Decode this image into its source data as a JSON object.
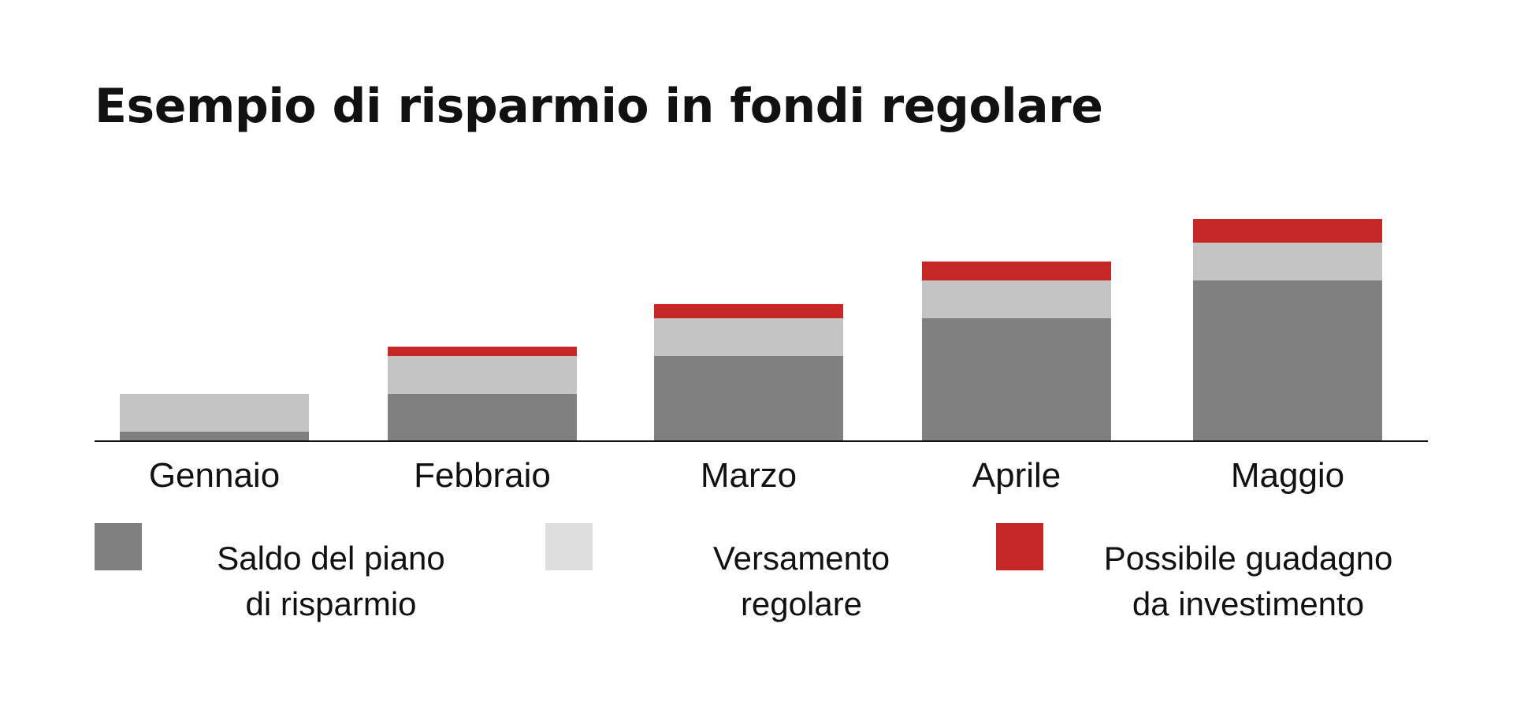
{
  "chart_data": {
    "type": "bar",
    "stacked": true,
    "title": "Esempio di risparmio in fondi regolare",
    "xlabel": "",
    "ylabel": "",
    "categories": [
      "Gennaio",
      "Febbraio",
      "Marzo",
      "Aprile",
      "Maggio"
    ],
    "series": [
      {
        "name": "Saldo del piano di risparmio",
        "label_lines": [
          "Saldo del piano",
          "di risparmio"
        ],
        "color": "#808080",
        "values": [
          1,
          5,
          9,
          13,
          17
        ]
      },
      {
        "name": "Versamento regolare",
        "label_lines": [
          "Versamento",
          "regolare"
        ],
        "color": "#c4c4c4",
        "values": [
          4,
          4,
          4,
          4,
          4
        ]
      },
      {
        "name": "Possibile guadagno da investimento",
        "label_lines": [
          "Possibile guadagno",
          "da investimento"
        ],
        "color": "#c62828",
        "values": [
          0,
          1,
          1.5,
          2,
          2.5
        ]
      }
    ],
    "ylim": [
      0,
      25
    ],
    "grid": false,
    "legend_position": "bottom",
    "y_axis_visible": false,
    "baseline_color": "#111111"
  },
  "legend_swatch_colors": [
    "#808080",
    "#dedede",
    "#c62828"
  ]
}
